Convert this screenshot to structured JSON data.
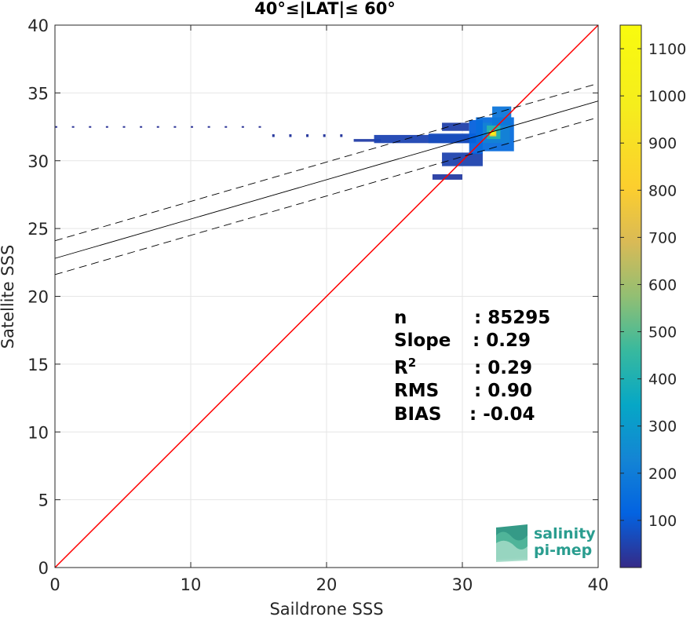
{
  "chart_data": {
    "type": "heatmap",
    "title": "40°≤|LAT|≤ 60°",
    "xlabel": "Saildrone SSS",
    "ylabel": "Satellite SSS",
    "xlim": [
      0,
      40
    ],
    "ylim": [
      0,
      40
    ],
    "xticks": [
      "0",
      "10",
      "20",
      "30",
      "40"
    ],
    "yticks": [
      "0",
      "5",
      "10",
      "15",
      "20",
      "25",
      "30",
      "35",
      "40"
    ],
    "grid": true,
    "colorbar": {
      "range": [
        0,
        1150
      ],
      "ticks": [
        "100",
        "200",
        "300",
        "400",
        "500",
        "600",
        "700",
        "800",
        "900",
        "1000",
        "1100"
      ],
      "colormap": "parula"
    },
    "lines": {
      "one_to_one": {
        "color": "#ff0000",
        "x": [
          0,
          40
        ],
        "y": [
          0,
          40
        ]
      },
      "regression": {
        "color": "#000000",
        "style": "solid",
        "intercept": 22.8,
        "slope": 0.29
      },
      "regression_upper": {
        "color": "#000000",
        "style": "dashed",
        "intercept": 24.1,
        "slope": 0.29
      },
      "regression_lower": {
        "color": "#000000",
        "style": "dashed",
        "intercept": 21.6,
        "slope": 0.29
      }
    },
    "density_regions": [
      {
        "x0": 0.0,
        "x1": 16.0,
        "y0": 32.45,
        "y1": 32.55,
        "count": 20,
        "sparse": true
      },
      {
        "x0": 16.0,
        "x1": 22.0,
        "y0": 31.75,
        "y1": 31.95,
        "count": 30,
        "sparse": true
      },
      {
        "x0": 22.0,
        "x1": 24.0,
        "y0": 31.4,
        "y1": 31.6,
        "count": 40
      },
      {
        "x0": 23.5,
        "x1": 31.0,
        "y0": 31.3,
        "y1": 31.9,
        "count": 55
      },
      {
        "x0": 27.5,
        "x1": 31.0,
        "y0": 31.3,
        "y1": 32.0,
        "count": 70
      },
      {
        "x0": 28.5,
        "x1": 30.5,
        "y0": 32.2,
        "y1": 32.8,
        "count": 45
      },
      {
        "x0": 27.8,
        "x1": 30.0,
        "y0": 28.6,
        "y1": 29.0,
        "count": 35
      },
      {
        "x0": 28.5,
        "x1": 31.5,
        "y0": 29.6,
        "y1": 30.6,
        "count": 50
      },
      {
        "x0": 30.5,
        "x1": 31.5,
        "y0": 30.5,
        "y1": 33.0,
        "count": 110
      },
      {
        "x0": 31.0,
        "x1": 33.8,
        "y0": 30.7,
        "y1": 33.2,
        "count": 150
      },
      {
        "x0": 31.5,
        "x1": 33.5,
        "y0": 31.3,
        "y1": 32.8,
        "count": 220
      },
      {
        "x0": 32.2,
        "x1": 33.6,
        "y0": 32.6,
        "y1": 34.0,
        "count": 180
      },
      {
        "x0": 31.8,
        "x1": 32.8,
        "y0": 31.6,
        "y1": 32.6,
        "count": 420
      },
      {
        "x0": 32.0,
        "x1": 32.5,
        "y0": 31.8,
        "y1": 32.2,
        "count": 800
      },
      {
        "x0": 32.1,
        "x1": 32.4,
        "y0": 31.9,
        "y1": 32.1,
        "count": 1100
      }
    ],
    "stats": [
      {
        "label": "n",
        "sup": "",
        "value": ": 85295"
      },
      {
        "label": "Slope",
        "sup": "",
        "value": ": 0.29"
      },
      {
        "label": "R",
        "sup": "2",
        "value": ": 0.29"
      },
      {
        "label": "RMS",
        "sup": "",
        "value": ": 0.90"
      },
      {
        "label": "BIAS",
        "sup": "",
        "value": ": -0.04"
      }
    ]
  },
  "logo": {
    "line1": "salinity",
    "line2": "pi-mep",
    "color": "#2a9d8f"
  }
}
